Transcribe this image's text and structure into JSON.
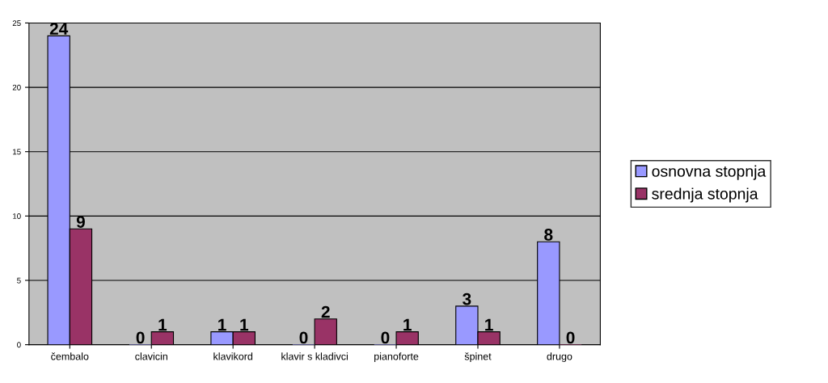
{
  "chart_data": {
    "type": "bar",
    "categories": [
      "čembalo",
      "clavicin",
      "klavikord",
      "klavir s kladivci",
      "pianoforte",
      "špinet",
      "drugo"
    ],
    "series": [
      {
        "name": "osnovna stopnja",
        "color": "#9999ff",
        "values": [
          24,
          0,
          1,
          0,
          0,
          3,
          8
        ]
      },
      {
        "name": "srednja stopnja",
        "color": "#993366",
        "values": [
          9,
          1,
          1,
          2,
          1,
          1,
          0
        ]
      }
    ],
    "ylim": [
      0,
      25
    ],
    "yticks": [
      0,
      5,
      10,
      15,
      20,
      25
    ],
    "grid": "y",
    "legend": "right",
    "data_labels": true
  }
}
